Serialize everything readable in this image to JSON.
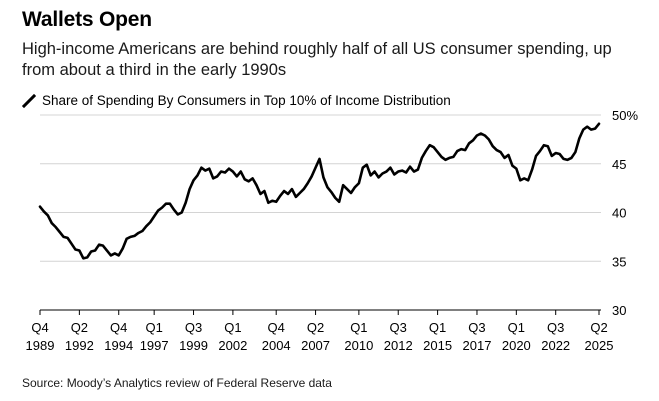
{
  "header": {
    "title": "Wallets Open",
    "subtitle": "High-income Americans are behind roughly half of all US consumer spending, up from about a third in the early 1990s"
  },
  "legend": {
    "label": "Share of Spending By Consumers in Top 10% of Income Distribution"
  },
  "source": "Source: Moody’s Analytics review of Federal Reserve data",
  "chart_data": {
    "type": "line",
    "title": "Wallets Open",
    "xlabel": "",
    "ylabel": "",
    "ylim": [
      30,
      50
    ],
    "xlim": [
      1989.75,
      2025.25
    ],
    "grid": true,
    "y_ticks": [
      {
        "value": 50,
        "label": "50%"
      },
      {
        "value": 45,
        "label": "45"
      },
      {
        "value": 40,
        "label": "40"
      },
      {
        "value": 35,
        "label": "35"
      },
      {
        "value": 30,
        "label": "30"
      }
    ],
    "x_ticks": [
      {
        "x": 1989.75,
        "q": "Q4",
        "year": "1989"
      },
      {
        "x": 1992.25,
        "q": "Q2",
        "year": "1992"
      },
      {
        "x": 1994.75,
        "q": "Q4",
        "year": "1994"
      },
      {
        "x": 1997.0,
        "q": "Q1",
        "year": "1997"
      },
      {
        "x": 1999.5,
        "q": "Q3",
        "year": "1999"
      },
      {
        "x": 2002.0,
        "q": "Q1",
        "year": "2002"
      },
      {
        "x": 2004.75,
        "q": "Q4",
        "year": "2004"
      },
      {
        "x": 2007.25,
        "q": "Q2",
        "year": "2007"
      },
      {
        "x": 2010.0,
        "q": "Q1",
        "year": "2010"
      },
      {
        "x": 2012.5,
        "q": "Q3",
        "year": "2012"
      },
      {
        "x": 2015.0,
        "q": "Q1",
        "year": "2015"
      },
      {
        "x": 2017.5,
        "q": "Q3",
        "year": "2017"
      },
      {
        "x": 2020.0,
        "q": "Q1",
        "year": "2020"
      },
      {
        "x": 2022.5,
        "q": "Q3",
        "year": "2022"
      },
      {
        "x": 2025.25,
        "q": "Q2",
        "year": "2025"
      }
    ],
    "series": [
      {
        "name": "Share of Spending By Consumers in Top 10% of Income Distribution",
        "color": "#000000",
        "points": [
          [
            1989.75,
            40.6
          ],
          [
            1990.0,
            40.1
          ],
          [
            1990.25,
            39.7
          ],
          [
            1990.5,
            38.9
          ],
          [
            1990.75,
            38.5
          ],
          [
            1991.0,
            38.0
          ],
          [
            1991.25,
            37.5
          ],
          [
            1991.5,
            37.4
          ],
          [
            1991.75,
            36.8
          ],
          [
            1992.0,
            36.2
          ],
          [
            1992.25,
            36.1
          ],
          [
            1992.5,
            35.3
          ],
          [
            1992.75,
            35.4
          ],
          [
            1993.0,
            36.0
          ],
          [
            1993.25,
            36.1
          ],
          [
            1993.5,
            36.7
          ],
          [
            1993.75,
            36.6
          ],
          [
            1994.0,
            36.1
          ],
          [
            1994.25,
            35.6
          ],
          [
            1994.5,
            35.8
          ],
          [
            1994.75,
            35.6
          ],
          [
            1995.0,
            36.3
          ],
          [
            1995.25,
            37.3
          ],
          [
            1995.5,
            37.5
          ],
          [
            1995.75,
            37.6
          ],
          [
            1996.0,
            37.9
          ],
          [
            1996.25,
            38.1
          ],
          [
            1996.5,
            38.6
          ],
          [
            1996.75,
            39.0
          ],
          [
            1997.0,
            39.6
          ],
          [
            1997.25,
            40.2
          ],
          [
            1997.5,
            40.5
          ],
          [
            1997.75,
            40.9
          ],
          [
            1998.0,
            40.9
          ],
          [
            1998.25,
            40.3
          ],
          [
            1998.5,
            39.8
          ],
          [
            1998.75,
            40.0
          ],
          [
            1999.0,
            41.0
          ],
          [
            1999.25,
            42.4
          ],
          [
            1999.5,
            43.3
          ],
          [
            1999.75,
            43.8
          ],
          [
            2000.0,
            44.6
          ],
          [
            2000.25,
            44.3
          ],
          [
            2000.5,
            44.5
          ],
          [
            2000.75,
            43.5
          ],
          [
            2001.0,
            43.7
          ],
          [
            2001.25,
            44.2
          ],
          [
            2001.5,
            44.1
          ],
          [
            2001.75,
            44.5
          ],
          [
            2002.0,
            44.2
          ],
          [
            2002.25,
            43.7
          ],
          [
            2002.5,
            44.2
          ],
          [
            2002.75,
            43.4
          ],
          [
            2003.0,
            43.2
          ],
          [
            2003.25,
            43.5
          ],
          [
            2003.5,
            42.8
          ],
          [
            2003.75,
            41.9
          ],
          [
            2004.0,
            42.2
          ],
          [
            2004.25,
            41.0
          ],
          [
            2004.5,
            41.2
          ],
          [
            2004.75,
            41.1
          ],
          [
            2005.0,
            41.7
          ],
          [
            2005.25,
            42.2
          ],
          [
            2005.5,
            41.9
          ],
          [
            2005.75,
            42.4
          ],
          [
            2006.0,
            41.6
          ],
          [
            2006.25,
            42.0
          ],
          [
            2006.5,
            42.4
          ],
          [
            2006.75,
            43.0
          ],
          [
            2007.0,
            43.7
          ],
          [
            2007.25,
            44.6
          ],
          [
            2007.5,
            45.5
          ],
          [
            2007.75,
            43.6
          ],
          [
            2008.0,
            42.6
          ],
          [
            2008.25,
            42.1
          ],
          [
            2008.5,
            41.5
          ],
          [
            2008.75,
            41.1
          ],
          [
            2009.0,
            42.8
          ],
          [
            2009.25,
            42.4
          ],
          [
            2009.5,
            42.0
          ],
          [
            2009.75,
            42.6
          ],
          [
            2010.0,
            43.0
          ],
          [
            2010.25,
            44.6
          ],
          [
            2010.5,
            44.9
          ],
          [
            2010.75,
            43.8
          ],
          [
            2011.0,
            44.2
          ],
          [
            2011.25,
            43.6
          ],
          [
            2011.5,
            44.0
          ],
          [
            2011.75,
            44.2
          ],
          [
            2012.0,
            44.6
          ],
          [
            2012.25,
            43.9
          ],
          [
            2012.5,
            44.2
          ],
          [
            2012.75,
            44.3
          ],
          [
            2013.0,
            44.1
          ],
          [
            2013.25,
            44.7
          ],
          [
            2013.5,
            44.2
          ],
          [
            2013.75,
            44.4
          ],
          [
            2014.0,
            45.6
          ],
          [
            2014.25,
            46.3
          ],
          [
            2014.5,
            46.9
          ],
          [
            2014.75,
            46.7
          ],
          [
            2015.0,
            46.2
          ],
          [
            2015.25,
            45.7
          ],
          [
            2015.5,
            45.4
          ],
          [
            2015.75,
            45.6
          ],
          [
            2016.0,
            45.7
          ],
          [
            2016.25,
            46.3
          ],
          [
            2016.5,
            46.5
          ],
          [
            2016.75,
            46.4
          ],
          [
            2017.0,
            47.1
          ],
          [
            2017.25,
            47.4
          ],
          [
            2017.5,
            47.9
          ],
          [
            2017.75,
            48.1
          ],
          [
            2018.0,
            47.9
          ],
          [
            2018.25,
            47.5
          ],
          [
            2018.5,
            46.8
          ],
          [
            2018.75,
            46.4
          ],
          [
            2019.0,
            46.2
          ],
          [
            2019.25,
            45.6
          ],
          [
            2019.5,
            45.9
          ],
          [
            2019.75,
            44.8
          ],
          [
            2020.0,
            44.5
          ],
          [
            2020.25,
            43.3
          ],
          [
            2020.5,
            43.5
          ],
          [
            2020.75,
            43.3
          ],
          [
            2021.0,
            44.4
          ],
          [
            2021.25,
            45.8
          ],
          [
            2021.5,
            46.3
          ],
          [
            2021.75,
            46.9
          ],
          [
            2022.0,
            46.8
          ],
          [
            2022.25,
            45.8
          ],
          [
            2022.5,
            46.1
          ],
          [
            2022.75,
            46.0
          ],
          [
            2023.0,
            45.5
          ],
          [
            2023.25,
            45.4
          ],
          [
            2023.5,
            45.6
          ],
          [
            2023.75,
            46.2
          ],
          [
            2024.0,
            47.6
          ],
          [
            2024.25,
            48.5
          ],
          [
            2024.5,
            48.8
          ],
          [
            2024.75,
            48.5
          ],
          [
            2025.0,
            48.6
          ],
          [
            2025.25,
            49.1
          ]
        ]
      }
    ]
  }
}
